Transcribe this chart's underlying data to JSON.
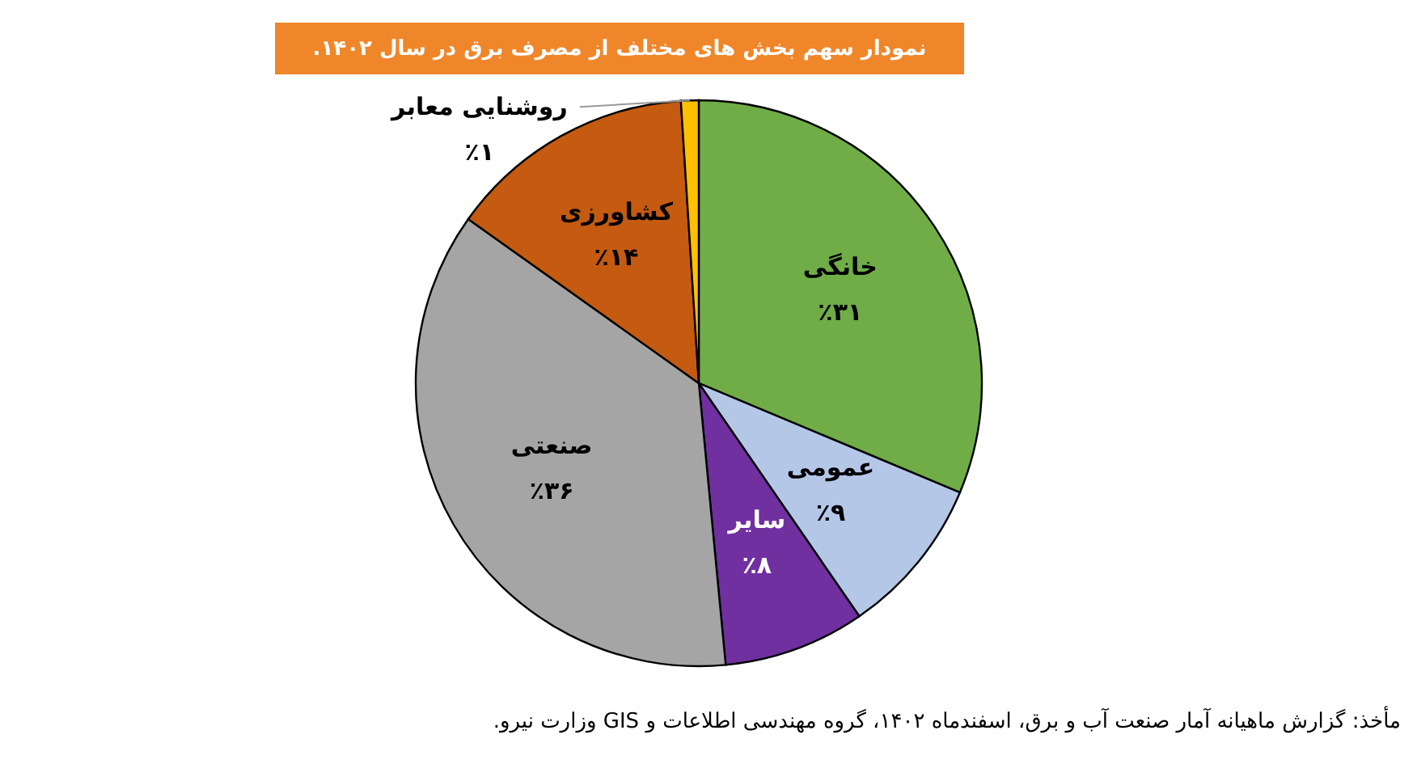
{
  "chart_data": {
    "type": "pie",
    "title": "نمودار سهم بخش های مختلف از مصرف برق در سال ۱۴۰۲.",
    "categories": [
      "خانگی",
      "عمومی",
      "سایر",
      "صنعتی",
      "کشاورزی",
      "روشنایی معابر"
    ],
    "values": [
      31,
      9,
      8,
      36,
      14,
      1
    ],
    "colors": [
      "#70ad47",
      "#b4c7e7",
      "#7030a0",
      "#a5a5a5",
      "#c55a11",
      "#ffc000"
    ],
    "value_labels": [
      "٪۳۱",
      "٪۹",
      "٪۸",
      "٪۳۶",
      "٪۱۴",
      "٪۱"
    ],
    "annotations": [
      "مأخذ: گزارش ماهیانه آمار صنعت آب و برق، اسفندماه ۱۴۰۲، گروه مهندسی اطلاعات و GIS وزارت نیرو."
    ]
  }
}
